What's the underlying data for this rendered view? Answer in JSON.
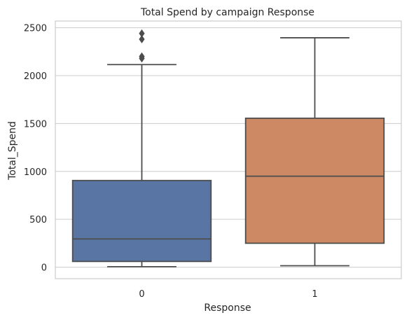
{
  "chart_data": {
    "type": "box",
    "title": "Total Spend by campaign Response",
    "xlabel": "Response",
    "ylabel": "Total_Spend",
    "categories": [
      "0",
      "1"
    ],
    "ylim": [
      -120,
      2570
    ],
    "yticks": [
      0,
      500,
      1000,
      1500,
      2000,
      2500
    ],
    "grid": true,
    "boxes": [
      {
        "category": "0",
        "color": "#5875a4",
        "whisker_low": 5,
        "q1": 60,
        "median": 295,
        "q3": 905,
        "whisker_high": 2115,
        "outliers": [
          2440,
          2380,
          2200,
          2180
        ]
      },
      {
        "category": "1",
        "color": "#cc8963",
        "whisker_low": 15,
        "q1": 250,
        "median": 950,
        "q3": 1555,
        "whisker_high": 2395,
        "outliers": []
      }
    ],
    "colors": {
      "line": "#4d4d4d",
      "grid": "#cccccc",
      "axes_edge": "#cccccc"
    }
  }
}
